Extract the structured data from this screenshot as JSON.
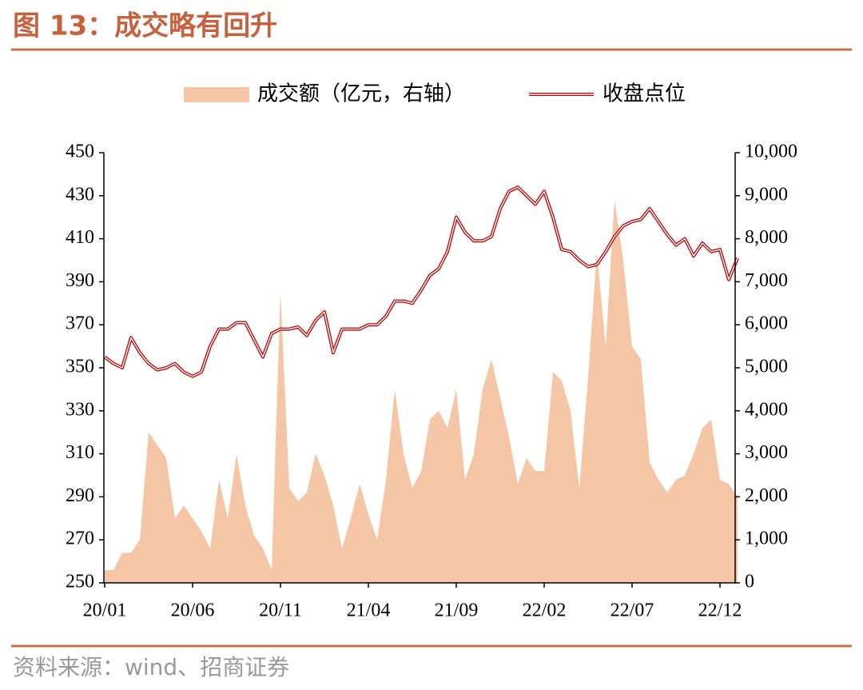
{
  "chart_data": {
    "type": "bar-line",
    "title": "图 13：成交略有回升",
    "source": "资料来源：wind、招商证券",
    "categories": [
      "20/01",
      null,
      null,
      null,
      null,
      null,
      null,
      null,
      null,
      null,
      "20/06",
      null,
      null,
      null,
      null,
      null,
      null,
      null,
      null,
      null,
      "20/11",
      null,
      null,
      null,
      null,
      null,
      null,
      null,
      null,
      null,
      "21/04",
      null,
      null,
      null,
      null,
      null,
      null,
      null,
      null,
      null,
      "21/09",
      null,
      null,
      null,
      null,
      null,
      null,
      null,
      null,
      null,
      "22/02",
      null,
      null,
      null,
      null,
      null,
      null,
      null,
      null,
      null,
      "22/07",
      null,
      null,
      null,
      null,
      null,
      null,
      null,
      null,
      null,
      "22/12",
      null,
      null
    ],
    "series": [
      {
        "name": "成交额（亿元，右轴）",
        "type": "area",
        "axis": "y2",
        "color": "#f5c6a5",
        "values": [
          300,
          300,
          700,
          700,
          1000,
          3500,
          3200,
          2900,
          1500,
          1800,
          1500,
          1200,
          800,
          2400,
          1500,
          3000,
          1800,
          1100,
          800,
          300,
          6800,
          2200,
          1900,
          2100,
          3000,
          2500,
          1800,
          800,
          1500,
          2300,
          1600,
          1000,
          2400,
          4500,
          3000,
          2200,
          2600,
          3800,
          4000,
          3600,
          4500,
          2400,
          3000,
          4500,
          5200,
          4300,
          3400,
          2300,
          2900,
          2600,
          2600,
          4900,
          4700,
          4000,
          2200,
          4800,
          7700,
          5500,
          8900,
          7500,
          5500,
          5200,
          2800,
          2400,
          2100,
          2400,
          2500,
          3000,
          3600,
          3800,
          2400,
          2300,
          2000
        ]
      },
      {
        "name": "收盘点位",
        "type": "line",
        "color": "#c00000",
        "values": [
          355,
          352,
          350,
          364,
          357,
          352,
          349,
          350,
          352,
          348,
          346,
          348,
          360,
          368,
          368,
          371,
          371,
          363,
          355,
          366,
          368,
          368,
          369,
          365,
          372,
          376,
          357,
          368,
          368,
          368,
          370,
          370,
          374,
          381,
          381,
          380,
          386,
          393,
          396,
          404,
          420,
          413,
          409,
          409,
          411,
          424,
          432,
          434,
          430,
          426,
          432,
          420,
          405,
          404,
          400,
          397,
          398,
          404,
          411,
          416,
          418,
          419,
          424,
          418,
          412,
          407,
          410,
          402,
          408,
          404,
          405,
          391,
          401
        ]
      }
    ],
    "ylim": [
      250,
      450
    ],
    "yticks": [
      250,
      270,
      290,
      310,
      330,
      350,
      370,
      390,
      410,
      430,
      450
    ],
    "y2lim": [
      0,
      10000
    ],
    "y2ticks": [
      0,
      {
        "value": 1000,
        "label": "1,000"
      },
      {
        "value": 2000,
        "label": "2,000"
      },
      {
        "value": 3000,
        "label": "3,000"
      },
      {
        "value": 4000,
        "label": "4,000"
      },
      {
        "value": 5000,
        "label": "5,000"
      },
      {
        "value": 6000,
        "label": "6,000"
      },
      {
        "value": 7000,
        "label": "7,000"
      },
      {
        "value": 8000,
        "label": "8,000"
      },
      {
        "value": 9000,
        "label": "9,000"
      },
      {
        "value": 10000,
        "label": "10,000"
      }
    ],
    "legend": "top"
  }
}
